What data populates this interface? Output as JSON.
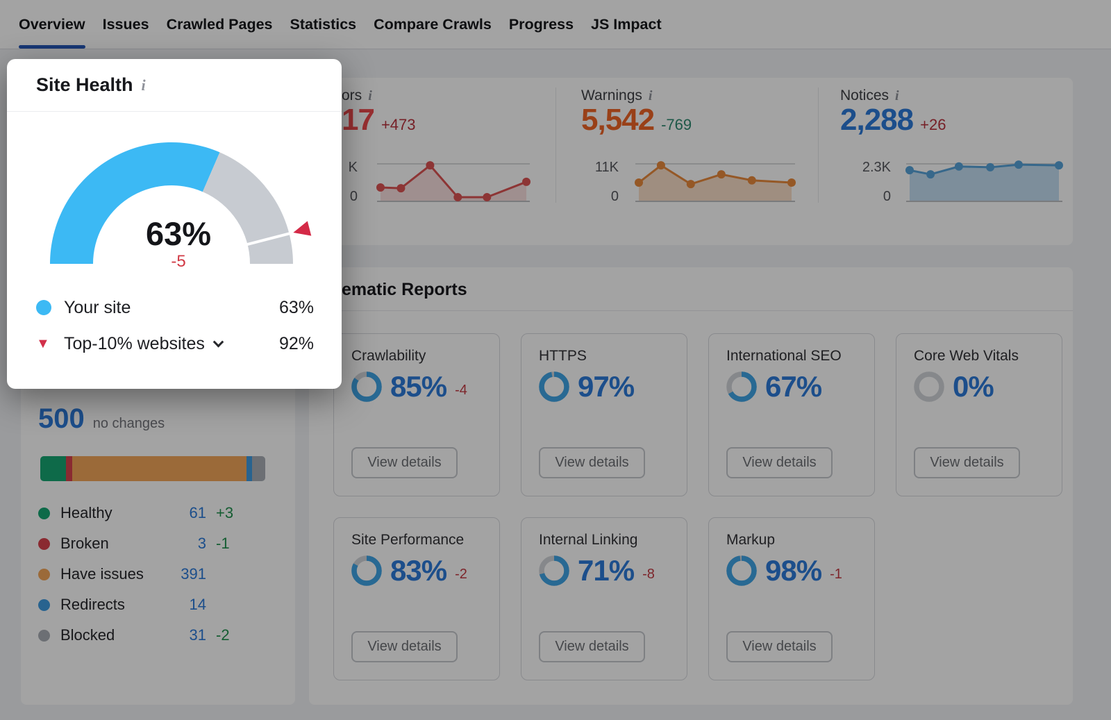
{
  "nav": {
    "tabs": [
      {
        "label": "Overview",
        "active": true
      },
      {
        "label": "Issues",
        "active": false
      },
      {
        "label": "Crawled Pages",
        "active": false
      },
      {
        "label": "Statistics",
        "active": false
      },
      {
        "label": "Compare Crawls",
        "active": false
      },
      {
        "label": "Progress",
        "active": false
      },
      {
        "label": "JS Impact",
        "active": false
      }
    ],
    "active_underline_color": "#2457b8"
  },
  "icons": {
    "info": "i",
    "benchmark_triangle": "▼"
  },
  "site_health": {
    "title": "Site Health",
    "score": "63%",
    "delta": "-5",
    "gauge": {
      "percent": 63,
      "benchmark": 92,
      "blue": "#3cb9f4",
      "track": "#c7cbd1",
      "marker_red": "#d42a47"
    },
    "legend": [
      {
        "label": "Your site",
        "value": "63%"
      },
      {
        "label": "Top-10% websites",
        "value": "92%",
        "has_dropdown": true
      }
    ]
  },
  "metrics": [
    {
      "title": "ors",
      "partially_hidden": true,
      "value": "17",
      "value_color": "#ee4a4e",
      "delta": "+473",
      "delta_color": "#b9333e",
      "y_max": "K",
      "y_min": "0",
      "line": "#dd5353",
      "fill": "rgba(221,83,83,0.18)",
      "points": {
        "x": [
          0,
          0.14,
          0.34,
          0.53,
          0.73,
          1
        ],
        "y": [
          0.37,
          0.35,
          0.96,
          0.11,
          0.11,
          0.52
        ]
      }
    },
    {
      "title": "Warnings",
      "value": "5,542",
      "value_color": "#f06426",
      "delta": "-769",
      "delta_color": "#2e8a71",
      "y_max": "11K",
      "y_min": "0",
      "line": "#e98a3c",
      "fill": "rgba(233,138,60,0.28)",
      "points": {
        "x": [
          0,
          0.145,
          0.34,
          0.54,
          0.74,
          1
        ],
        "y": [
          0.5,
          0.96,
          0.46,
          0.72,
          0.56,
          0.5
        ]
      }
    },
    {
      "title": "Notices",
      "value": "2,288",
      "value_color": "#2d7bd9",
      "delta": "+26",
      "delta_color": "#b9333e",
      "y_max": "2.3K",
      "y_min": "0",
      "line": "#56a3d9",
      "fill": "rgba(86,163,217,0.35)",
      "points": {
        "x": [
          0,
          0.14,
          0.33,
          0.54,
          0.73,
          1
        ],
        "y": [
          0.83,
          0.72,
          0.93,
          0.91,
          0.98,
          0.96
        ]
      }
    }
  ],
  "crawled_pages": {
    "total": "500",
    "note": "no changes",
    "segments": [
      {
        "label": "Healthy",
        "color": "#17a673",
        "pct": 11.5
      },
      {
        "label": "Broken",
        "color": "#d8434e",
        "pct": 2.8
      },
      {
        "label": "Have issues",
        "color": "#f2a65a",
        "pct": 77.3
      },
      {
        "label": "Redirects",
        "color": "#3f9be0",
        "pct": 2.6
      },
      {
        "label": "Blocked",
        "color": "#a9aeb6",
        "pct": 5.8
      }
    ],
    "legend": [
      {
        "label": "Healthy",
        "value": "61",
        "delta": "+3"
      },
      {
        "label": "Broken",
        "value": "3",
        "delta": "-1"
      },
      {
        "label": "Have issues",
        "value": "391"
      },
      {
        "label": "Redirects",
        "value": "14"
      },
      {
        "label": "Blocked",
        "value": "31",
        "delta": "-2"
      }
    ]
  },
  "thematic": {
    "title": "ematic Reports",
    "partially_hidden": true,
    "button_label": "View details",
    "ring_blue": "#3fa5e6",
    "ring_track": "#d2d5da",
    "cards": [
      {
        "title": "Crawlability",
        "percent": "85%",
        "value": 85,
        "delta": "-4"
      },
      {
        "title": "HTTPS",
        "percent": "97%",
        "value": 97
      },
      {
        "title": "International SEO",
        "percent": "67%",
        "value": 67
      },
      {
        "title": "Core Web Vitals",
        "percent": "0%",
        "value": 0
      },
      {
        "title": "Site Performance",
        "percent": "83%",
        "value": 83,
        "delta": "-2"
      },
      {
        "title": "Internal Linking",
        "percent": "71%",
        "value": 71,
        "delta": "-8"
      },
      {
        "title": "Markup",
        "percent": "98%",
        "value": 98,
        "delta": "-1"
      }
    ]
  }
}
